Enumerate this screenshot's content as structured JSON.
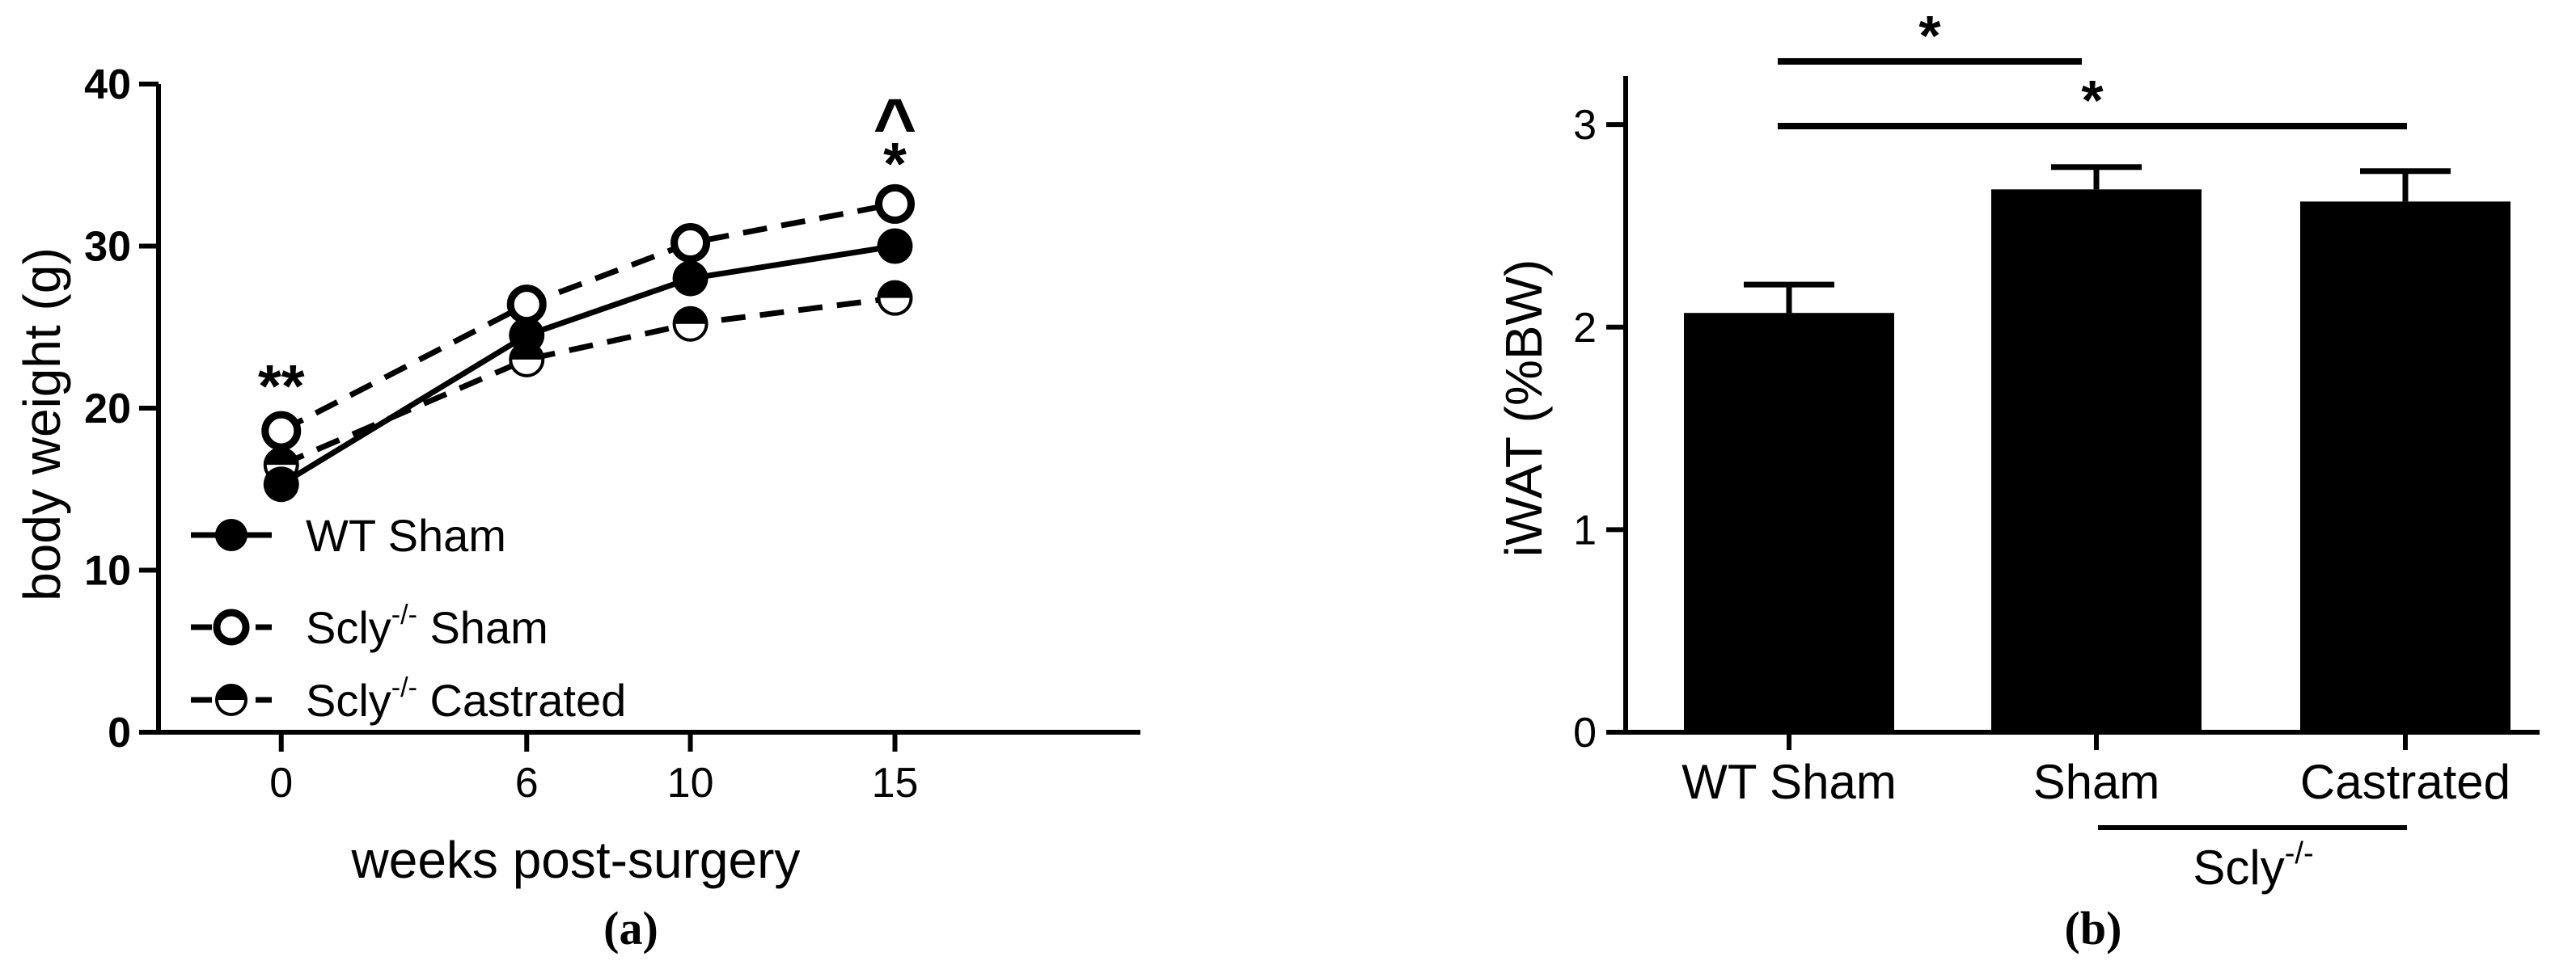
{
  "chart_data": [
    {
      "panel": "(a)",
      "type": "line",
      "title": "",
      "xlabel": "weeks post-surgery",
      "ylabel": "body weight (g)",
      "x": [
        0,
        6,
        10,
        15
      ],
      "xlim": [
        -3,
        21
      ],
      "ylim": [
        0,
        40
      ],
      "yticks": [
        0,
        10,
        20,
        30,
        40
      ],
      "xticks": [
        0,
        6,
        10,
        15
      ],
      "grid": false,
      "legend_position": "bottom-left",
      "series": [
        {
          "name": "WT Sham",
          "legend_main": "WT Sham",
          "legend_sup": "",
          "legend_tail": "",
          "marker": "filled",
          "line": "solid",
          "values": [
            15.3,
            24.5,
            28.0,
            30.0
          ]
        },
        {
          "name": "Scly-/- Sham",
          "legend_main": "Scly",
          "legend_sup": "-/-",
          "legend_tail": " Sham",
          "marker": "open",
          "line": "dashed",
          "values": [
            18.6,
            26.4,
            30.2,
            32.6
          ]
        },
        {
          "name": "Scly-/- Castrated",
          "legend_main": "Scly",
          "legend_sup": "-/-",
          "legend_tail": " Castrated",
          "marker": "half",
          "line": "dashed",
          "values": [
            16.5,
            23.0,
            25.2,
            26.8
          ]
        }
      ],
      "annotations": [
        {
          "text": "**",
          "x": 0,
          "y": 21.8
        },
        {
          "text": "*",
          "x": 15,
          "y": 35.5
        },
        {
          "text": "^",
          "x": 15,
          "y": 38.8
        }
      ]
    },
    {
      "panel": "(b)",
      "type": "bar",
      "title": "",
      "xlabel": "",
      "ylabel": "iWAT (%BW)",
      "categories": [
        "WT Sham",
        "Sham",
        "Castrated"
      ],
      "values": [
        2.07,
        2.68,
        2.62
      ],
      "errors": [
        0.14,
        0.11,
        0.15
      ],
      "ylim": [
        0,
        3.2
      ],
      "yticks": [
        0,
        1,
        2,
        3
      ],
      "grid": false,
      "group_label": {
        "main": "Scly",
        "sup": "-/-",
        "categories": [
          "Sham",
          "Castrated"
        ]
      },
      "significance": [
        {
          "from": "WT Sham",
          "to": "Sham",
          "text": "*"
        },
        {
          "from": "WT Sham",
          "to": "Castrated",
          "text": "*"
        }
      ]
    }
  ]
}
